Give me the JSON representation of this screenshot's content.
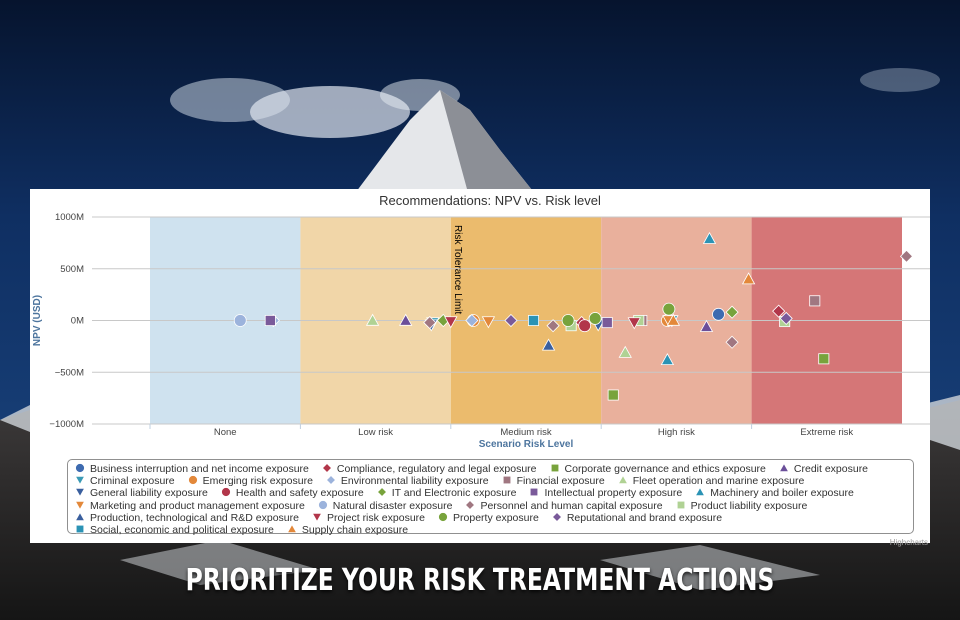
{
  "tagline": "PRIORITIZE YOUR RISK TREATMENT ACTIONS",
  "credits": "Highcharts",
  "chart_data": {
    "type": "scatter",
    "title": "Recommendations: NPV vs. Risk level",
    "xlabel": "Scenario Risk Level",
    "ylabel": "NPV (USD)",
    "categories": [
      "None",
      "Low risk",
      "Medium risk",
      "High risk",
      "Extreme risk"
    ],
    "ylim": [
      -1000,
      1000
    ],
    "yticks": [
      1000,
      500,
      0,
      -500,
      -1000
    ],
    "ytick_labels": [
      "1000M",
      "500M",
      "0M",
      "−500M",
      "−1000M"
    ],
    "grid": true,
    "legend_position": "bottom",
    "band_colors": [
      "#cfe2ef",
      "#f1d6a8",
      "#ebbb6d",
      "#e9b09c",
      "#d57677"
    ],
    "annotation": {
      "text": "Risk Tolerance Limit",
      "x": 2.0
    },
    "series": [
      {
        "name": "Business interruption and net income exposure",
        "marker": "circle",
        "color": "#3e6bb0",
        "points": [
          [
            3.28,
            60
          ]
        ]
      },
      {
        "name": "Compliance, regulatory and legal exposure",
        "marker": "diamond",
        "color": "#b2364a",
        "points": [
          [
            2.37,
            -20
          ],
          [
            3.68,
            90
          ]
        ]
      },
      {
        "name": "Corporate governance and ethics exposure",
        "marker": "square",
        "color": "#78a33c",
        "points": [
          [
            2.58,
            -720
          ],
          [
            3.98,
            -370
          ]
        ]
      },
      {
        "name": "Credit exposure",
        "marker": "triangle",
        "color": "#6b4f9a",
        "points": [
          [
            1.2,
            0
          ],
          [
            3.2,
            -60
          ]
        ]
      },
      {
        "name": "Criminal exposure",
        "marker": "triangle-down",
        "color": "#3a9ab5",
        "points": [
          [
            1.38,
            -20
          ],
          [
            2.97,
            0
          ]
        ]
      },
      {
        "name": "Emerging risk exposure",
        "marker": "circle",
        "color": "#e3883a",
        "points": [
          [
            1.65,
            0
          ],
          [
            2.94,
            0
          ]
        ]
      },
      {
        "name": "Environmental liability exposure",
        "marker": "diamond",
        "color": "#9cb3dc",
        "points": [
          [
            0.32,
            0
          ],
          [
            1.64,
            0
          ]
        ]
      },
      {
        "name": "Financial exposure",
        "marker": "square",
        "color": "#a07781",
        "points": [
          [
            2.77,
            0
          ],
          [
            3.92,
            190
          ]
        ]
      },
      {
        "name": "Fleet operation and marine exposure",
        "marker": "triangle",
        "color": "#b0d294",
        "points": [
          [
            0.98,
            0
          ],
          [
            2.66,
            -310
          ]
        ]
      },
      {
        "name": "General liability exposure",
        "marker": "triangle-down",
        "color": "#3a5f9e",
        "points": [
          [
            1.37,
            -40
          ],
          [
            2.48,
            -40
          ]
        ]
      },
      {
        "name": "Health and safety exposure",
        "marker": "circle",
        "color": "#b2364a",
        "points": [
          [
            2.39,
            -50
          ]
        ]
      },
      {
        "name": "IT and Electronic exposure",
        "marker": "diamond",
        "color": "#78a33c",
        "points": [
          [
            1.45,
            0
          ],
          [
            3.37,
            80
          ]
        ]
      },
      {
        "name": "Intellectual property exposure",
        "marker": "square",
        "color": "#7a5a9a",
        "points": [
          [
            0.3,
            0
          ],
          [
            2.54,
            -20
          ]
        ]
      },
      {
        "name": "Machinery and boiler exposure",
        "marker": "triangle",
        "color": "#2b93b5",
        "points": [
          [
            3.22,
            790
          ],
          [
            4.84,
            600
          ],
          [
            2.94,
            -380
          ]
        ]
      },
      {
        "name": "Marketing and product management exposure",
        "marker": "triangle-down",
        "color": "#e3883a",
        "points": [
          [
            1.75,
            -10
          ],
          [
            2.95,
            0
          ]
        ]
      },
      {
        "name": "Natural disaster exposure",
        "marker": "circle",
        "color": "#9cb3dc",
        "points": [
          [
            0.1,
            0
          ]
        ]
      },
      {
        "name": "Personnel and human capital exposure",
        "marker": "diamond",
        "color": "#a07781",
        "points": [
          [
            1.36,
            -20
          ],
          [
            2.18,
            -50
          ],
          [
            3.37,
            -210
          ],
          [
            4.53,
            620
          ]
        ]
      },
      {
        "name": "Product liability exposure",
        "marker": "square",
        "color": "#b0d294",
        "points": [
          [
            2.3,
            -50
          ],
          [
            2.75,
            0
          ],
          [
            3.72,
            -10
          ]
        ]
      },
      {
        "name": "Production, technological and R&D exposure",
        "marker": "triangle",
        "color": "#3a5f9e",
        "points": [
          [
            2.15,
            -240
          ]
        ]
      },
      {
        "name": "Project risk exposure",
        "marker": "triangle-down",
        "color": "#b2364a",
        "points": [
          [
            1.5,
            -10
          ],
          [
            2.72,
            -20
          ]
        ]
      },
      {
        "name": "Property exposure",
        "marker": "circle",
        "color": "#78a33c",
        "points": [
          [
            2.28,
            0
          ],
          [
            2.46,
            20
          ],
          [
            2.95,
            110
          ]
        ]
      },
      {
        "name": "Reputational and brand exposure",
        "marker": "diamond",
        "color": "#7a5a9a",
        "points": [
          [
            1.9,
            0
          ],
          [
            3.73,
            20
          ]
        ]
      },
      {
        "name": "Social, economic and political exposure",
        "marker": "square",
        "color": "#2b93b5",
        "points": [
          [
            2.05,
            0
          ]
        ]
      },
      {
        "name": "Supply chain exposure",
        "marker": "triangle",
        "color": "#e3883a",
        "points": [
          [
            3.48,
            400
          ],
          [
            2.98,
            0
          ]
        ]
      }
    ]
  }
}
